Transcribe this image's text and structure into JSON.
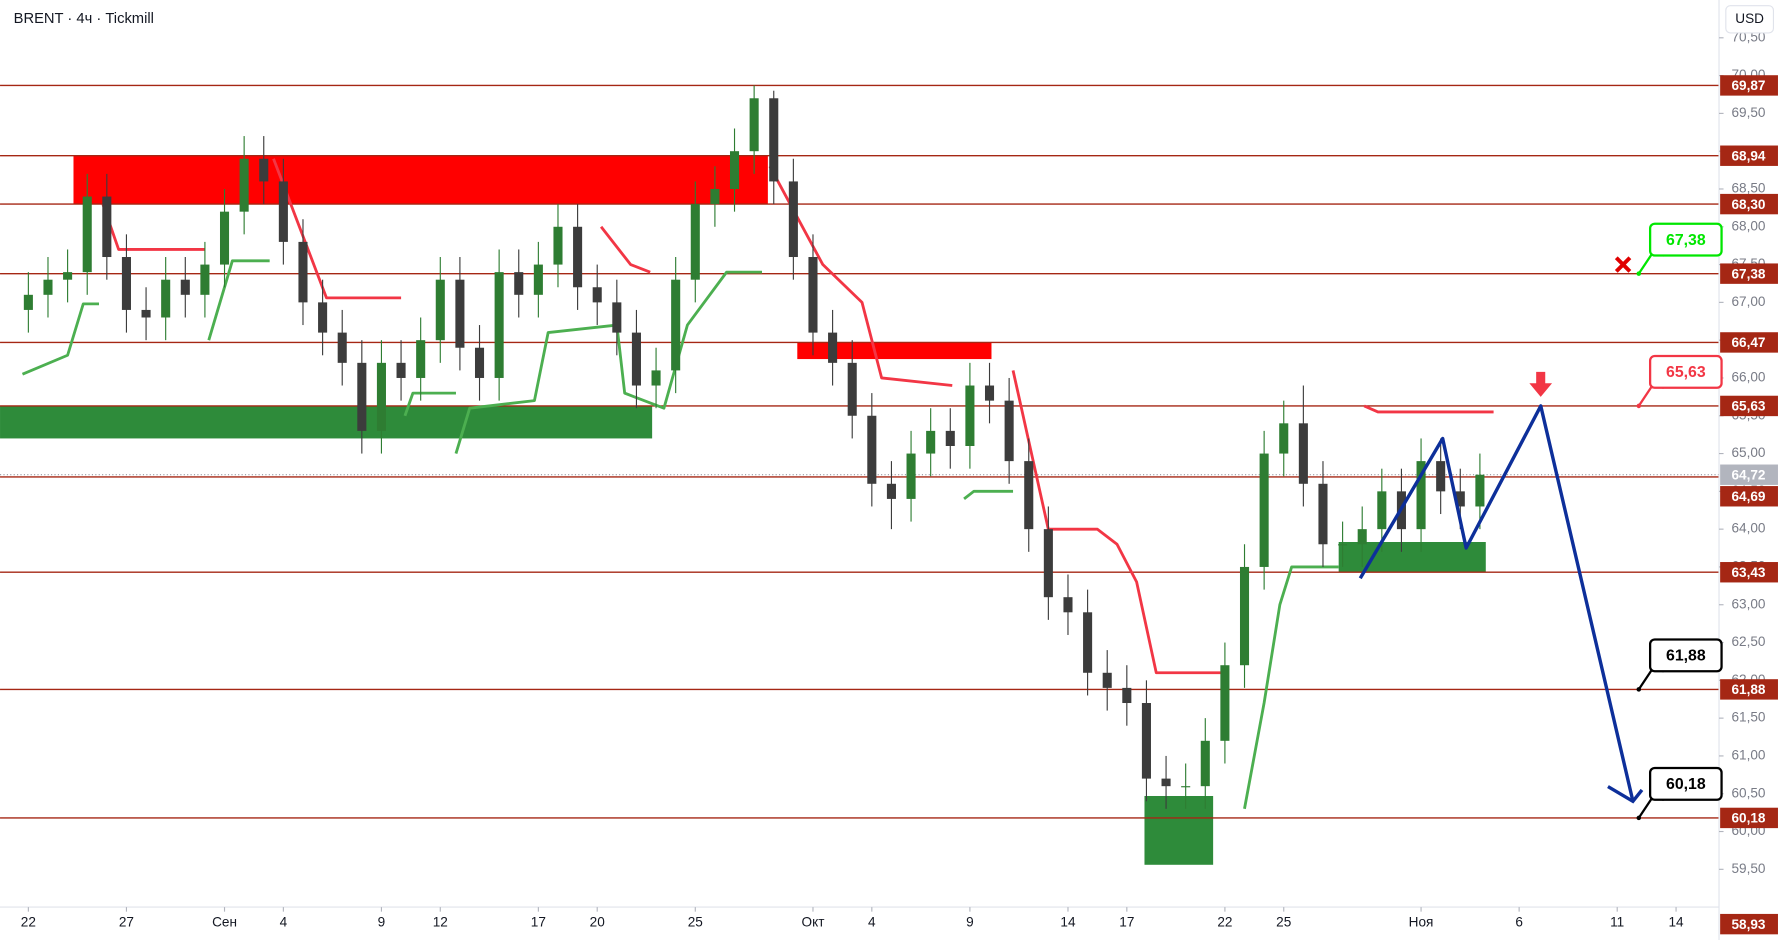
{
  "chart_data": {
    "type": "candlestick",
    "title": "BRENT · 4ч · Tickmill",
    "currency": "USD",
    "up_color": "#2e7d32",
    "down_color": "#3c3c3c",
    "xlim": [
      -1.445,
      86.19
    ],
    "ylim": [
      59.0,
      71.0
    ],
    "xticks": [
      {
        "value": 0,
        "label": "22"
      },
      {
        "value": 5,
        "label": "27"
      },
      {
        "value": 10,
        "label": "Сен"
      },
      {
        "value": 13,
        "label": "4"
      },
      {
        "value": 18,
        "label": "9"
      },
      {
        "value": 21,
        "label": "12"
      },
      {
        "value": 26,
        "label": "17"
      },
      {
        "value": 29,
        "label": "20"
      },
      {
        "value": 34,
        "label": "25"
      },
      {
        "value": 40,
        "label": "Окт"
      },
      {
        "value": 43,
        "label": "4"
      },
      {
        "value": 48,
        "label": "9"
      },
      {
        "value": 53,
        "label": "14"
      },
      {
        "value": 56,
        "label": "17"
      },
      {
        "value": 61,
        "label": "22"
      },
      {
        "value": 64,
        "label": "25"
      },
      {
        "value": 71,
        "label": "Ноя"
      },
      {
        "value": 76,
        "label": "6"
      },
      {
        "value": 81,
        "label": "11"
      },
      {
        "value": 84,
        "label": "14"
      }
    ],
    "yticks": [
      {
        "value": 59.5,
        "label": "59,50"
      },
      {
        "value": 60.0,
        "label": "60,00"
      },
      {
        "value": 60.5,
        "label": "60,50"
      },
      {
        "value": 61.0,
        "label": "61,00"
      },
      {
        "value": 61.5,
        "label": "61,50"
      },
      {
        "value": 62.0,
        "label": "62,00"
      },
      {
        "value": 62.5,
        "label": "62,50"
      },
      {
        "value": 63.0,
        "label": "63,00"
      },
      {
        "value": 63.5,
        "label": "63,50"
      },
      {
        "value": 64.0,
        "label": "64,00"
      },
      {
        "value": 64.5,
        "label": "64,50"
      },
      {
        "value": 65.0,
        "label": "65,00"
      },
      {
        "value": 65.5,
        "label": "65,50"
      },
      {
        "value": 66.0,
        "label": "66,00"
      },
      {
        "value": 66.5,
        "label": "66,50"
      },
      {
        "value": 67.0,
        "label": "67,00"
      },
      {
        "value": 67.5,
        "label": "67,50"
      },
      {
        "value": 68.0,
        "label": "68,00"
      },
      {
        "value": 68.5,
        "label": "68,50"
      },
      {
        "value": 69.0,
        "label": "69,00"
      },
      {
        "value": 69.5,
        "label": "69,50"
      },
      {
        "value": 70.0,
        "label": "70,00"
      },
      {
        "value": 70.5,
        "label": "70,50"
      }
    ],
    "x": [
      0,
      1,
      2,
      3,
      4,
      5,
      6,
      7,
      8,
      9,
      10,
      11,
      12,
      13,
      14,
      15,
      16,
      17,
      18,
      19,
      20,
      21,
      22,
      23,
      24,
      25,
      26,
      27,
      28,
      29,
      30,
      31,
      32,
      33,
      34,
      35,
      36,
      37,
      38,
      39,
      40,
      41,
      42,
      43,
      44,
      45,
      46,
      47,
      48,
      49,
      50,
      51,
      52,
      53,
      54,
      55,
      56,
      57,
      58,
      59,
      60,
      61,
      62,
      63,
      64,
      65,
      66,
      67,
      68,
      69,
      70,
      71,
      72,
      73,
      74
    ],
    "open": [
      66.9,
      67.1,
      67.3,
      67.4,
      68.4,
      67.6,
      66.9,
      66.8,
      67.3,
      67.1,
      67.5,
      68.2,
      68.9,
      68.6,
      67.8,
      67.0,
      66.6,
      66.2,
      65.3,
      66.2,
      66.0,
      66.5,
      67.3,
      66.4,
      66.0,
      67.4,
      67.1,
      67.5,
      68.0,
      67.2,
      67.0,
      66.6,
      65.9,
      66.1,
      67.3,
      68.3,
      68.5,
      69.0,
      69.7,
      68.6,
      67.6,
      66.6,
      66.2,
      65.5,
      64.6,
      64.4,
      65.0,
      65.3,
      65.1,
      65.9,
      65.7,
      64.9,
      64.0,
      63.1,
      62.9,
      62.1,
      61.9,
      61.7,
      60.7,
      60.6,
      60.6,
      61.2,
      62.2,
      63.5,
      65.0,
      65.4,
      64.6,
      63.8,
      63.8,
      64.0,
      64.5,
      64.0,
      64.9,
      64.5,
      64.3
    ],
    "high": [
      67.4,
      67.6,
      67.7,
      68.7,
      68.7,
      67.9,
      67.2,
      67.6,
      67.6,
      67.8,
      68.5,
      69.2,
      69.2,
      68.9,
      68.1,
      67.3,
      66.9,
      66.5,
      66.5,
      66.5,
      66.8,
      67.6,
      67.6,
      66.7,
      67.7,
      67.7,
      67.8,
      68.3,
      68.3,
      67.5,
      67.3,
      66.9,
      66.4,
      67.6,
      68.6,
      68.8,
      69.3,
      69.87,
      69.8,
      68.9,
      67.9,
      66.9,
      66.5,
      65.8,
      64.9,
      65.3,
      65.6,
      65.6,
      66.2,
      66.2,
      66.0,
      65.2,
      64.3,
      63.4,
      63.2,
      62.4,
      62.2,
      62.0,
      61.0,
      60.9,
      61.5,
      62.5,
      63.8,
      65.3,
      65.7,
      65.9,
      64.9,
      64.1,
      64.3,
      64.8,
      64.8,
      65.2,
      65.2,
      64.8,
      65.0
    ],
    "low": [
      66.6,
      66.8,
      67.0,
      67.1,
      67.3,
      66.6,
      66.5,
      66.5,
      66.8,
      66.8,
      67.2,
      67.9,
      68.3,
      67.5,
      66.7,
      66.3,
      65.9,
      65.0,
      65.0,
      65.7,
      65.7,
      66.2,
      66.1,
      65.7,
      65.7,
      66.8,
      66.8,
      67.2,
      66.9,
      66.7,
      66.3,
      65.6,
      65.6,
      65.8,
      67.0,
      68.0,
      68.2,
      68.7,
      68.3,
      67.3,
      66.3,
      65.9,
      65.2,
      64.3,
      64.0,
      64.1,
      64.7,
      64.8,
      64.8,
      65.4,
      64.6,
      63.7,
      62.8,
      62.6,
      61.8,
      61.6,
      61.4,
      60.4,
      60.3,
      60.3,
      60.3,
      60.9,
      61.9,
      63.2,
      64.7,
      64.3,
      63.5,
      63.5,
      63.5,
      63.7,
      63.7,
      63.7,
      64.2,
      64.0,
      64.0
    ],
    "close": [
      67.1,
      67.3,
      67.4,
      68.4,
      67.6,
      66.9,
      66.8,
      67.3,
      67.1,
      67.5,
      68.2,
      68.9,
      68.6,
      67.8,
      67.0,
      66.6,
      66.2,
      65.3,
      66.2,
      66.0,
      66.5,
      67.3,
      66.4,
      66.0,
      67.4,
      67.1,
      67.5,
      68.0,
      67.2,
      67.0,
      66.6,
      65.9,
      66.1,
      67.3,
      68.3,
      68.5,
      69.0,
      69.7,
      68.6,
      67.6,
      66.6,
      66.2,
      65.5,
      64.6,
      64.4,
      65.0,
      65.3,
      65.1,
      65.9,
      65.7,
      64.9,
      64.0,
      63.1,
      62.9,
      62.1,
      61.9,
      61.7,
      60.7,
      60.6,
      60.6,
      61.2,
      62.2,
      63.5,
      65.0,
      65.4,
      64.6,
      63.8,
      63.8,
      64.0,
      64.5,
      64.0,
      64.9,
      64.5,
      64.3,
      64.72
    ],
    "levels": [
      {
        "value": 69.87,
        "label": "69,87"
      },
      {
        "value": 68.94,
        "label": "68,94"
      },
      {
        "value": 68.3,
        "label": "68,30"
      },
      {
        "value": 67.38,
        "label": "67,38"
      },
      {
        "value": 66.47,
        "label": "66,47"
      },
      {
        "value": 65.63,
        "label": "65,63"
      },
      {
        "value": 64.69,
        "label": "64,69"
      },
      {
        "value": 63.43,
        "label": "63,43"
      },
      {
        "value": 61.88,
        "label": "61,88"
      },
      {
        "value": 60.18,
        "label": "60,18"
      }
    ],
    "level_color": "#a52714",
    "last_price": {
      "value": 64.72,
      "label": "64,72"
    },
    "low_label": {
      "value": 58.93,
      "label": "58,93"
    },
    "zones": [
      {
        "color": "#ff0000",
        "x0": 2.3,
        "x1": 37.7,
        "y0": 68.3,
        "y1": 68.94
      },
      {
        "color": "#2e8b3a",
        "x0": -1.445,
        "x1": 31.8,
        "y0": 65.2,
        "y1": 65.63
      },
      {
        "color": "#ff0000",
        "x0": 39.2,
        "x1": 49.1,
        "y0": 66.25,
        "y1": 66.47
      },
      {
        "color": "#2e8b3a",
        "x0": 56.9,
        "x1": 60.4,
        "y0": 59.56,
        "y1": 60.47
      },
      {
        "color": "#2e8b3a",
        "x0": 66.8,
        "x1": 74.3,
        "y0": 63.43,
        "y1": 63.83
      }
    ],
    "series": [
      {
        "name": "Supertrend down",
        "color": "#f23645",
        "x": [
          3.8,
          4.6,
          9.0,
          null,
          12.5,
          15.2,
          19.0,
          null,
          29.2,
          30.7,
          31.7,
          null,
          37.8,
          40.5,
          42.5,
          43.5,
          47.1,
          null,
          50.2,
          52.0,
          54.5,
          55.5,
          56.5,
          57.5,
          61.0,
          null,
          68.1,
          68.8,
          74.7
        ],
        "values": [
          68.3,
          67.7,
          67.7,
          null,
          68.9,
          67.06,
          67.06,
          null,
          68.0,
          67.5,
          67.4,
          null,
          68.8,
          67.5,
          67.0,
          66.0,
          65.9,
          null,
          66.1,
          64.0,
          64.0,
          63.8,
          63.3,
          62.1,
          62.1,
          null,
          65.63,
          65.55,
          65.55
        ]
      },
      {
        "name": "Supertrend up",
        "color": "#4caf50",
        "x": [
          -0.3,
          2.0,
          2.8,
          3.6,
          null,
          9.2,
          10.4,
          12.3,
          null,
          19.2,
          19.6,
          21.8,
          null,
          21.8,
          22.5,
          25.8,
          26.5,
          30.0,
          30.4,
          32.4,
          33.6,
          35.6,
          37.4,
          null,
          47.7,
          48.2,
          50.2,
          null,
          62.0,
          63.0,
          63.8,
          64.4,
          66.8
        ],
        "values": [
          66.05,
          66.3,
          66.98,
          66.98,
          null,
          66.5,
          67.55,
          67.55,
          null,
          65.5,
          65.8,
          65.8,
          null,
          65.0,
          65.6,
          65.7,
          66.6,
          66.7,
          65.8,
          65.6,
          66.7,
          67.4,
          67.4,
          null,
          64.4,
          64.5,
          64.5,
          null,
          60.3,
          61.7,
          63.0,
          63.5,
          63.5
        ]
      }
    ],
    "forecast": {
      "color": "#0d2f9a",
      "x": [
        67.9,
        72.1,
        73.3,
        77.1,
        81.8
      ],
      "values": [
        63.35,
        65.2,
        63.75,
        65.63,
        60.4
      ]
    },
    "callouts": [
      {
        "x": 82.1,
        "value": 67.38,
        "label": "67,38",
        "color": "#00e600"
      },
      {
        "x": 82.1,
        "value": 65.63,
        "label": "65,63",
        "color": "#f23645"
      },
      {
        "x": 82.1,
        "value": 61.88,
        "label": "61,88",
        "color": "#000000"
      },
      {
        "x": 82.1,
        "value": 60.18,
        "label": "60,18",
        "color": "#000000"
      }
    ],
    "cancel_mark": {
      "x": 81.3,
      "value": 67.38,
      "color": "#e00000"
    }
  }
}
